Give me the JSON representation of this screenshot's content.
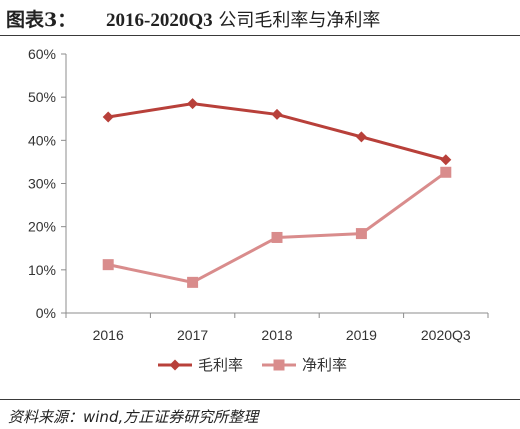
{
  "header": {
    "figure_label": "图表3：",
    "title_range": "2016-2020Q3",
    "title_text": " 公司毛利率与净利率"
  },
  "footer": {
    "source": "资料来源：wind,方正证券研究所整理"
  },
  "chart_data": {
    "type": "line",
    "title": "2016-2020Q3 公司毛利率与净利率",
    "categories": [
      "2016",
      "2017",
      "2018",
      "2019",
      "2020Q3"
    ],
    "ylim": [
      0,
      60
    ],
    "y_unit": "%",
    "yticks": [
      "0%",
      "10%",
      "20%",
      "30%",
      "40%",
      "50%",
      "60%"
    ],
    "grid": false,
    "legend_position": "bottom",
    "series": [
      {
        "name": "毛利率",
        "values": [
          45.4,
          48.5,
          46.0,
          40.8,
          35.5
        ],
        "color": "#b8403a",
        "marker": "diamond"
      },
      {
        "name": "净利率",
        "values": [
          11.2,
          7.1,
          17.5,
          18.4,
          32.6
        ],
        "color": "#d98c8c",
        "marker": "square"
      }
    ]
  }
}
